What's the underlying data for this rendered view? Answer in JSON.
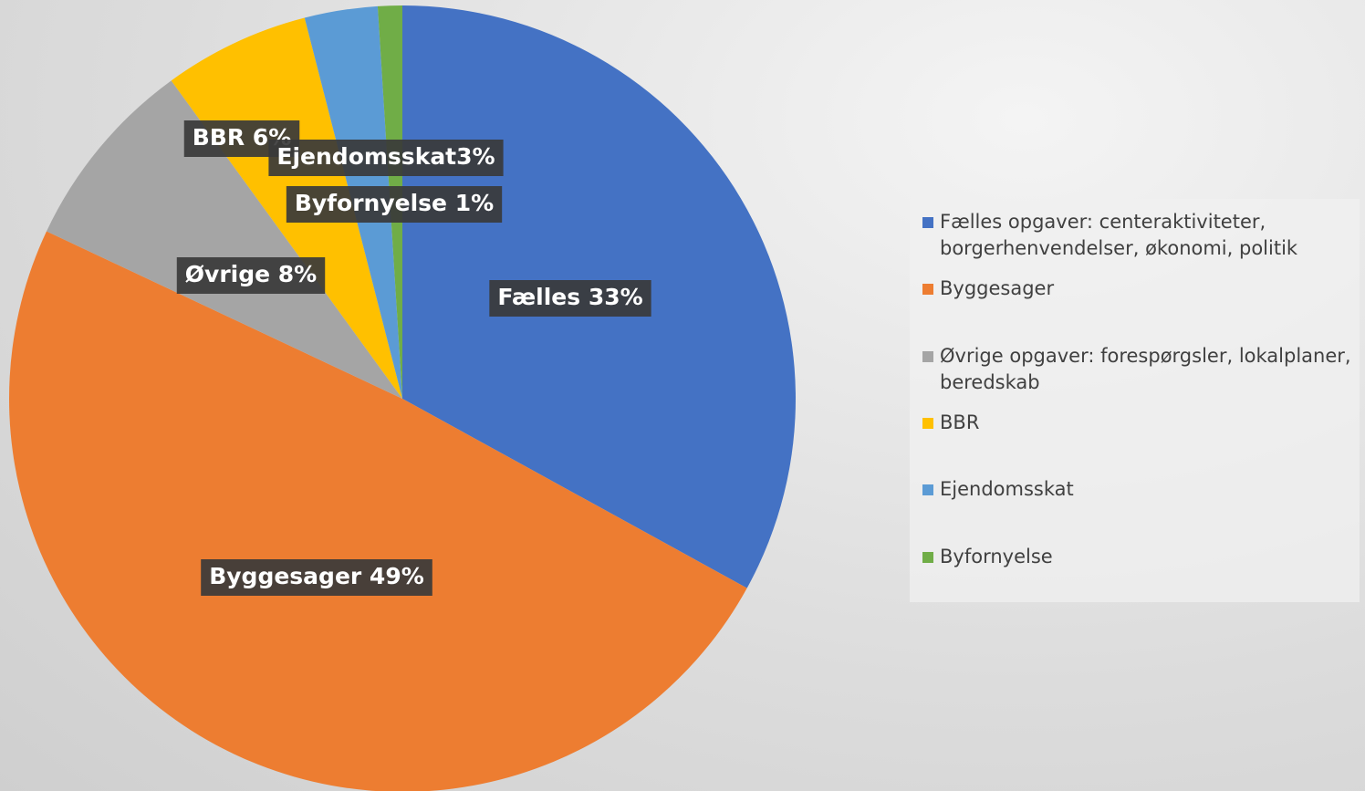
{
  "chart_data": {
    "type": "pie",
    "categories": [
      "Fælles opgaver: centeraktiviteter, borgerhenvendelser, økonomi, politik",
      "Byggesager",
      "Øvrige opgaver: forespørgsler, lokalplaner, beredskab",
      "BBR",
      "Ejendomsskat",
      "Byfornyelse"
    ],
    "values": [
      33,
      49,
      8,
      6,
      3,
      1
    ],
    "value_labels": [
      "Fælles 33%",
      "Byggesager 49%",
      "Øvrige 8%",
      "BBR 6%",
      "Ejendomsskat3%",
      "Byfornyelse 1%"
    ],
    "colors": [
      "#4472c4",
      "#ed7d31",
      "#a5a5a5",
      "#ffc000",
      "#5b9bd5",
      "#70ad47"
    ],
    "legend": "right"
  }
}
